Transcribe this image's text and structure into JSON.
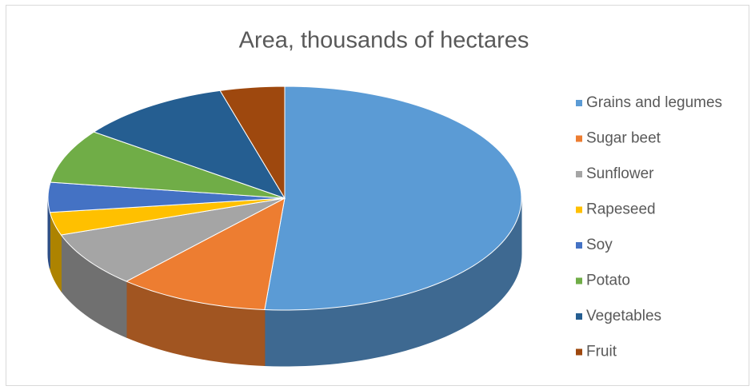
{
  "chart_data": {
    "type": "pie3d",
    "title": "Area, thousands of hectares",
    "categories": [
      "Grains and legumes",
      "Sugar beet",
      "Sunflower",
      "Rapeseed",
      "Soy",
      "Potato",
      "Vegetables",
      "Fruit"
    ],
    "values": [
      51.3,
      10.3,
      8,
      3.3,
      4.3,
      7.8,
      10.5,
      4.4
    ],
    "colors": [
      "#5b9bd5",
      "#ed7d31",
      "#a5a5a5",
      "#ffc000",
      "#4472c4",
      "#70ad47",
      "#255e91",
      "#9e480e"
    ],
    "legend": "right"
  }
}
